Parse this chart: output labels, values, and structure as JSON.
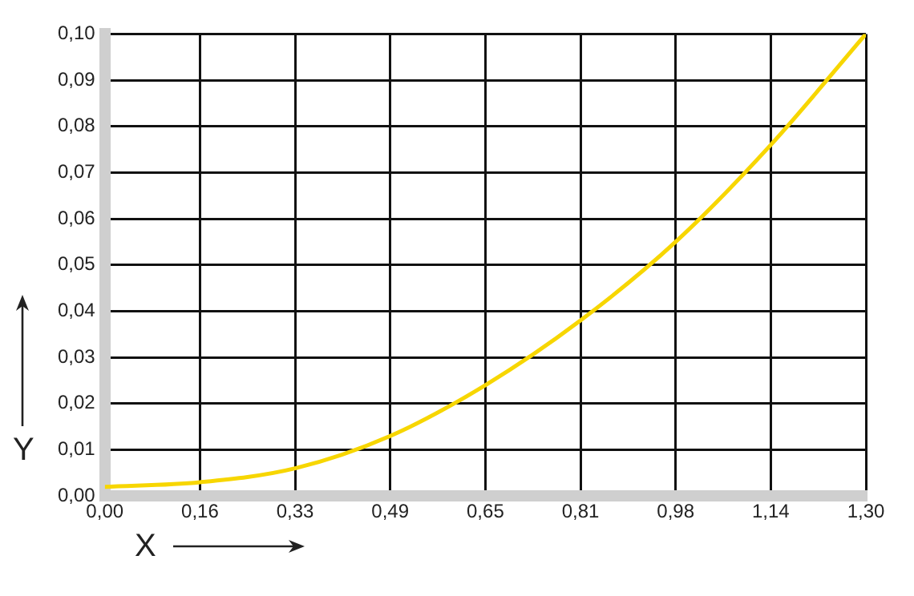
{
  "chart_data": {
    "type": "line",
    "xlabel": "X",
    "ylabel": "Y",
    "x": [
      0,
      0.1625,
      0.325,
      0.4875,
      0.65,
      0.8125,
      0.975,
      1.1375,
      1.3
    ],
    "series": [
      {
        "color": "#f7d600",
        "values": [
          0.002,
          0.003,
          0.006,
          0.013,
          0.024,
          0.038,
          0.055,
          0.076,
          0.1
        ]
      }
    ],
    "xlim": [
      0,
      1.3
    ],
    "ylim": [
      0,
      0.1
    ],
    "xticks": [
      {
        "value": 0,
        "label": "0,00"
      },
      {
        "value": 0.1625,
        "label": "0,16"
      },
      {
        "value": 0.325,
        "label": "0,33"
      },
      {
        "value": 0.4875,
        "label": "0,49"
      },
      {
        "value": 0.65,
        "label": "0,65"
      },
      {
        "value": 0.8125,
        "label": "0,81"
      },
      {
        "value": 0.975,
        "label": "0,98"
      },
      {
        "value": 1.1375,
        "label": "1,14"
      },
      {
        "value": 1.3,
        "label": "1,30"
      }
    ],
    "yticks": [
      {
        "value": 0,
        "label": "0,00"
      },
      {
        "value": 0.01,
        "label": "0,01"
      },
      {
        "value": 0.02,
        "label": "0,02"
      },
      {
        "value": 0.03,
        "label": "0,03"
      },
      {
        "value": 0.04,
        "label": "0,04"
      },
      {
        "value": 0.05,
        "label": "0,05"
      },
      {
        "value": 0.06,
        "label": "0,06"
      },
      {
        "value": 0.07,
        "label": "0,07"
      },
      {
        "value": 0.08,
        "label": "0,08"
      },
      {
        "value": 0.09,
        "label": "0,09"
      },
      {
        "value": 0.1,
        "label": "0,10"
      }
    ],
    "grid": true,
    "legend": false,
    "marker": "none",
    "line_style": "solid"
  }
}
